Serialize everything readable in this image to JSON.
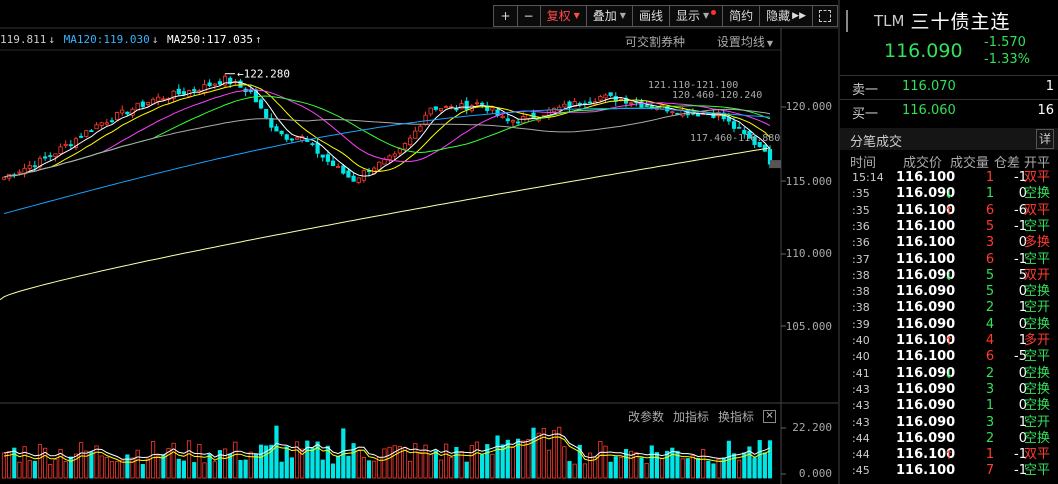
{
  "toolbar": {
    "plus": "+",
    "minus": "−",
    "adjust": "复权",
    "overlay": "叠加",
    "draw": "画线",
    "display": "显示",
    "simple": "简约",
    "hide": "隐藏"
  },
  "ma_legend": {
    "ma60": "119.811",
    "ma120": "MA120:119.030",
    "ma250": "MA250:117.035"
  },
  "top_links": {
    "rollover": "可交割券种",
    "ma_settings": "设置均线"
  },
  "price_axis": [
    "120.000",
    "115.000",
    "110.000",
    "105.000"
  ],
  "annotations": {
    "high": "122.280",
    "range1": "121.110-121.100",
    "range2": "120.460-120.240",
    "range3": "117.460-116.880"
  },
  "volume": {
    "links": [
      "改参数",
      "加指标",
      "换指标"
    ],
    "axis_top": "22.200",
    "axis_bottom": "0.000"
  },
  "quote": {
    "code": "TLM",
    "name": "三十债主连",
    "price": "116.090",
    "change": "-1.570",
    "change_pct": "-1.33%"
  },
  "order_book": [
    {
      "label": "卖一",
      "price": "116.070",
      "qty": "1"
    },
    {
      "label": "买一",
      "price": "116.060",
      "qty": "16"
    }
  ],
  "ticks_panel": {
    "title": "分笔成交",
    "detail_btn": "详",
    "columns": [
      "时间",
      "成交价",
      "成交量",
      "仓差",
      "开平"
    ]
  },
  "ticks": [
    {
      "time": "15:14",
      "price": "116.100",
      "arrow": "",
      "vol": "1",
      "oi": "-1",
      "type": "双平",
      "dir": "up"
    },
    {
      "time": ":35",
      "price": "116.090",
      "arrow": "↓",
      "vol": "1",
      "oi": "0",
      "type": "空换",
      "dir": "dn"
    },
    {
      "time": ":35",
      "price": "116.100",
      "arrow": "↑",
      "vol": "6",
      "oi": "-6",
      "type": "双平",
      "dir": "up"
    },
    {
      "time": ":36",
      "price": "116.100",
      "arrow": "",
      "vol": "5",
      "oi": "-1",
      "type": "空平",
      "dir": "up"
    },
    {
      "time": ":36",
      "price": "116.100",
      "arrow": "",
      "vol": "3",
      "oi": "0",
      "type": "多换",
      "dir": "up"
    },
    {
      "time": ":37",
      "price": "116.100",
      "arrow": "",
      "vol": "6",
      "oi": "-1",
      "type": "空平",
      "dir": "up"
    },
    {
      "time": ":38",
      "price": "116.090",
      "arrow": "↓",
      "vol": "5",
      "oi": "5",
      "type": "双开",
      "dir": "dn"
    },
    {
      "time": ":38",
      "price": "116.090",
      "arrow": "",
      "vol": "5",
      "oi": "0",
      "type": "空换",
      "dir": "dn"
    },
    {
      "time": ":38",
      "price": "116.090",
      "arrow": "",
      "vol": "2",
      "oi": "1",
      "type": "空开",
      "dir": "dn"
    },
    {
      "time": ":39",
      "price": "116.090",
      "arrow": "",
      "vol": "4",
      "oi": "0",
      "type": "空换",
      "dir": "dn"
    },
    {
      "time": ":40",
      "price": "116.100",
      "arrow": "↑",
      "vol": "4",
      "oi": "1",
      "type": "多开",
      "dir": "up"
    },
    {
      "time": ":40",
      "price": "116.100",
      "arrow": "",
      "vol": "6",
      "oi": "-5",
      "type": "空平",
      "dir": "up"
    },
    {
      "time": ":41",
      "price": "116.090",
      "arrow": "↓",
      "vol": "2",
      "oi": "0",
      "type": "空换",
      "dir": "dn"
    },
    {
      "time": ":43",
      "price": "116.090",
      "arrow": "",
      "vol": "3",
      "oi": "0",
      "type": "空换",
      "dir": "dn"
    },
    {
      "time": ":43",
      "price": "116.090",
      "arrow": "",
      "vol": "1",
      "oi": "0",
      "type": "空换",
      "dir": "dn"
    },
    {
      "time": ":43",
      "price": "116.090",
      "arrow": "",
      "vol": "3",
      "oi": "1",
      "type": "空开",
      "dir": "dn"
    },
    {
      "time": ":44",
      "price": "116.090",
      "arrow": "",
      "vol": "2",
      "oi": "0",
      "type": "空换",
      "dir": "dn"
    },
    {
      "time": ":44",
      "price": "116.100",
      "arrow": "↑",
      "vol": "1",
      "oi": "-1",
      "type": "双平",
      "dir": "up"
    },
    {
      "time": ":45",
      "price": "116.100",
      "arrow": "",
      "vol": "7",
      "oi": "-1",
      "type": "空平",
      "dir": "up"
    }
  ],
  "colors": {
    "up": "#ff3b30",
    "down": "#33e05a",
    "ma5": "#ffffff",
    "ma10": "#ffff00",
    "ma20": "#ff00ff",
    "ma30": "#00ff00",
    "ma60": "#aaaaaa",
    "ma120": "#00a0ff",
    "ma250": "#ffff99"
  }
}
